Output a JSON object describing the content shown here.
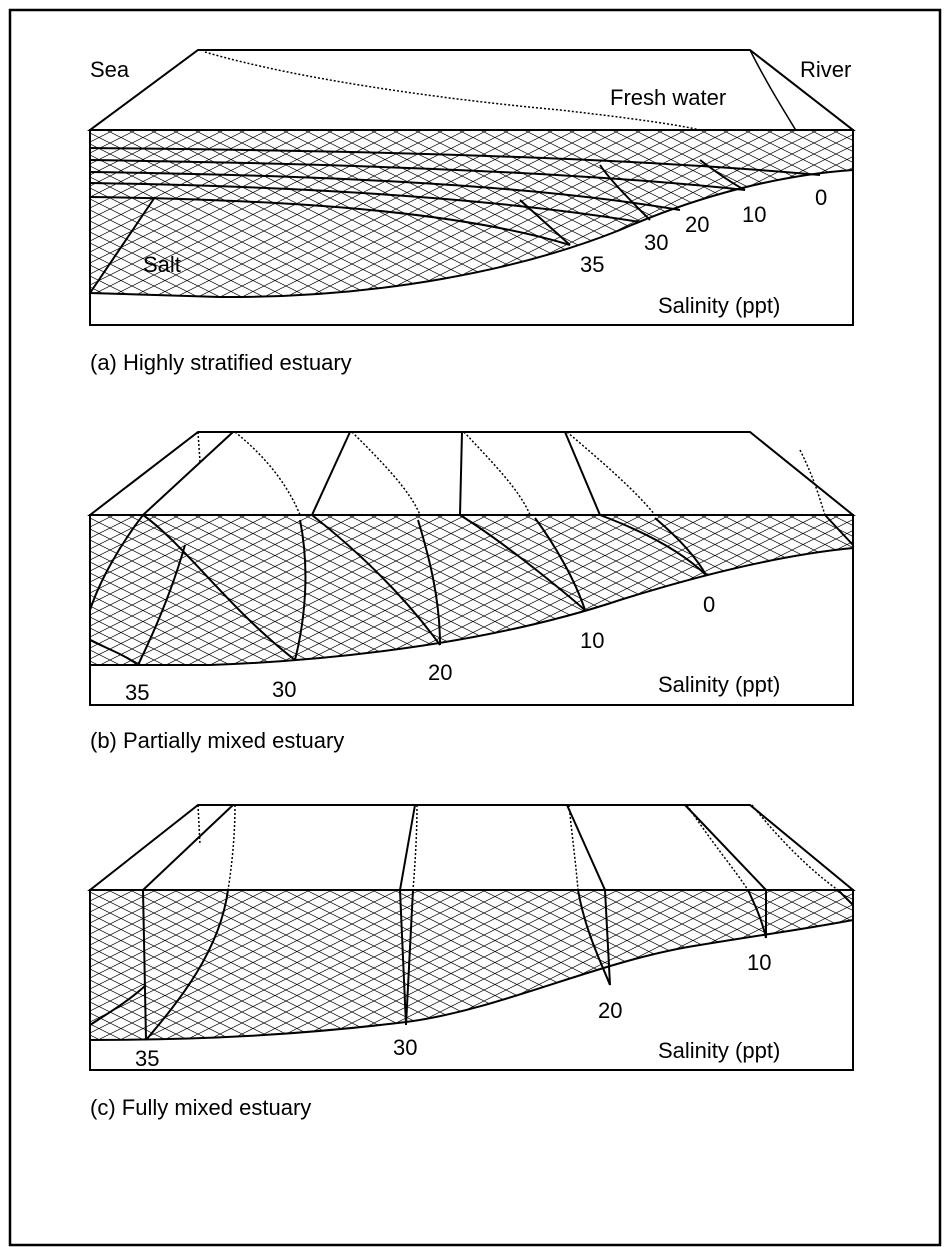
{
  "panels": [
    {
      "caption": "(a) Highly stratified estuary",
      "end_labels": {
        "sea": "Sea",
        "river": "River"
      },
      "annotations": {
        "fresh": "Fresh water",
        "salt": "Salt"
      },
      "salinity_values": [
        "35",
        "30",
        "20",
        "10",
        "0"
      ],
      "axis_label": "Salinity (ppt)"
    },
    {
      "caption": "(b) Partially mixed estuary",
      "salinity_values": [
        "35",
        "30",
        "20",
        "10",
        "0"
      ],
      "axis_label": "Salinity (ppt)"
    },
    {
      "caption": "(c) Fully mixed estuary",
      "salinity_values": [
        "35",
        "30",
        "20",
        "10"
      ],
      "axis_label": "Salinity (ppt)"
    }
  ]
}
